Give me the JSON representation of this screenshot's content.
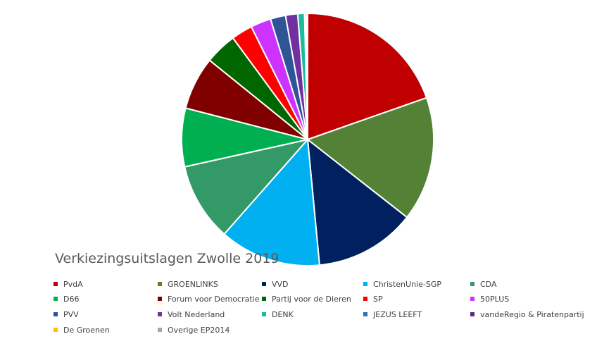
{
  "chart_data": {
    "type": "pie",
    "title": "Verkiezingsuitslagen Zwolle 2019",
    "legend_position": "bottom",
    "slices": [
      {
        "label": "PvdA",
        "value": 20.2,
        "color": "#C00000"
      },
      {
        "label": "GROENLINKS",
        "value": 16.4,
        "color": "#538135"
      },
      {
        "label": "VVD",
        "value": 13.3,
        "color": "#002060"
      },
      {
        "label": "ChristenUnie-SGP",
        "value": 13.4,
        "color": "#00B0F0"
      },
      {
        "label": "CDA",
        "value": 10.3,
        "color": "#339966"
      },
      {
        "label": "D66",
        "value": 7.7,
        "color": "#00B050"
      },
      {
        "label": "Forum voor Democratie",
        "value": 7.0,
        "color": "#800000"
      },
      {
        "label": "Partij voor de Dieren",
        "value": 4.2,
        "color": "#006600"
      },
      {
        "label": "SP",
        "value": 2.8,
        "color": "#FF0000"
      },
      {
        "label": "50PLUS",
        "value": 2.7,
        "color": "#CC33FF"
      },
      {
        "label": "PVV",
        "value": 2.0,
        "color": "#2F5597"
      },
      {
        "label": "Volt Nederland",
        "value": 1.6,
        "color": "#7030A0"
      },
      {
        "label": "DENK",
        "value": 0.9,
        "color": "#1ABC9C"
      },
      {
        "label": "JEZUS LEEFT",
        "value": 0.2,
        "color": "#2E75B6"
      },
      {
        "label": "vandeRegio & Piratenpartij",
        "value": 0.1,
        "color": "#5B2C83"
      },
      {
        "label": "De Groenen",
        "value": 0.05,
        "color": "#FFC000"
      },
      {
        "label": "Overige EP2014",
        "value": 0.05,
        "color": "#A5A5A5"
      }
    ]
  }
}
